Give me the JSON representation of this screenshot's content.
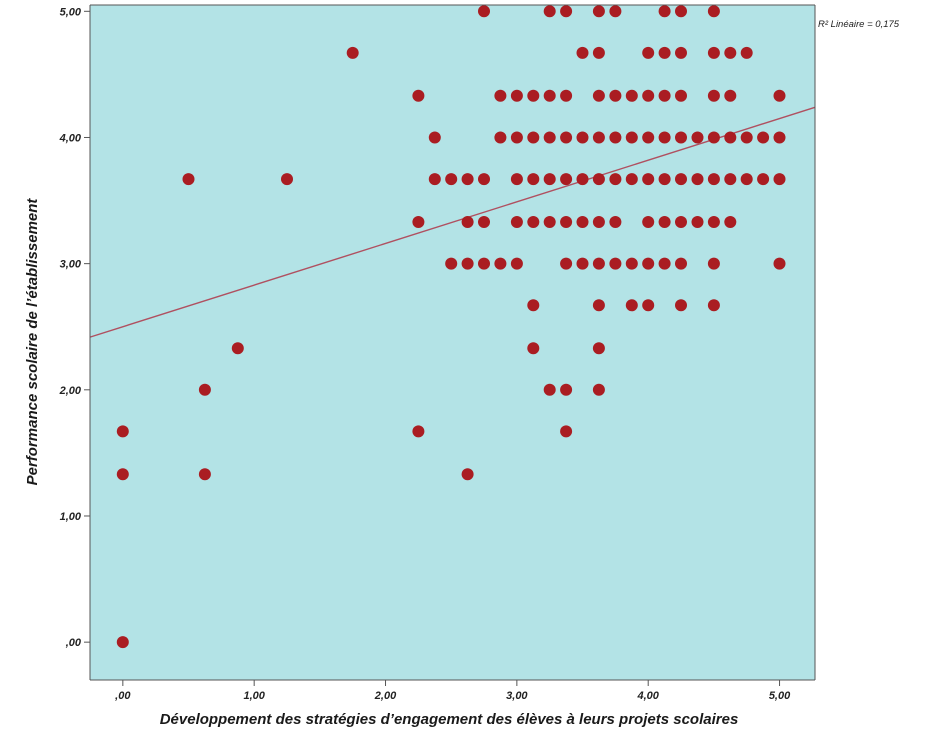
{
  "chart_data": {
    "type": "scatter",
    "xlabel": "Développement des stratégies d’engagement des élèves à leurs projets scolaires",
    "ylabel": "Performance scolaire de l’établissement",
    "xlim": [
      -0.25,
      5.27
    ],
    "ylim": [
      -0.3,
      5.05
    ],
    "x_ticks": [
      {
        "value": 0,
        "label": ",00"
      },
      {
        "value": 1,
        "label": "1,00"
      },
      {
        "value": 2,
        "label": "2,00"
      },
      {
        "value": 3,
        "label": "3,00"
      },
      {
        "value": 4,
        "label": "4,00"
      },
      {
        "value": 5,
        "label": "5,00"
      }
    ],
    "y_ticks": [
      {
        "value": 0,
        "label": ",00"
      },
      {
        "value": 1,
        "label": "1,00"
      },
      {
        "value": 2,
        "label": "2,00"
      },
      {
        "value": 3,
        "label": "3,00"
      },
      {
        "value": 4,
        "label": "4,00"
      },
      {
        "value": 5,
        "label": "5,00"
      }
    ],
    "fit_line": {
      "label": "R² Linéaire = 0,175",
      "intercept": 2.5,
      "slope": 0.33,
      "color": "#b05060"
    },
    "grid": false,
    "colors": {
      "background": "#b3e3e6",
      "point": "#aa1d22",
      "axis": "#555555"
    },
    "points": [
      [
        0,
        0
      ],
      [
        0,
        1.33
      ],
      [
        0,
        1.67
      ],
      [
        0.5,
        3.67
      ],
      [
        0.625,
        1.33
      ],
      [
        0.625,
        2
      ],
      [
        0.875,
        2.33
      ],
      [
        1.25,
        3.67
      ],
      [
        1.75,
        4.67
      ],
      [
        2.25,
        1.67
      ],
      [
        2.25,
        3.33
      ],
      [
        2.25,
        4.33
      ],
      [
        2.375,
        4
      ],
      [
        2.375,
        3.67
      ],
      [
        2.5,
        3.67
      ],
      [
        2.5,
        3
      ],
      [
        2.625,
        1.33
      ],
      [
        2.625,
        3.67
      ],
      [
        2.625,
        3.33
      ],
      [
        2.625,
        3
      ],
      [
        2.75,
        5
      ],
      [
        2.75,
        3.67
      ],
      [
        2.75,
        3.33
      ],
      [
        2.75,
        3
      ],
      [
        2.875,
        4.33
      ],
      [
        2.875,
        4
      ],
      [
        2.875,
        3
      ],
      [
        3,
        4.33
      ],
      [
        3,
        4
      ],
      [
        3,
        3.67
      ],
      [
        3,
        3.33
      ],
      [
        3,
        3
      ],
      [
        3.125,
        4.33
      ],
      [
        3.125,
        4
      ],
      [
        3.125,
        3.67
      ],
      [
        3.125,
        3.33
      ],
      [
        3.125,
        2.67
      ],
      [
        3.125,
        2.33
      ],
      [
        3.25,
        5
      ],
      [
        3.25,
        4.33
      ],
      [
        3.25,
        4
      ],
      [
        3.25,
        3.67
      ],
      [
        3.25,
        3.33
      ],
      [
        3.25,
        2
      ],
      [
        3.375,
        5
      ],
      [
        3.375,
        4.33
      ],
      [
        3.375,
        4
      ],
      [
        3.375,
        3.67
      ],
      [
        3.375,
        3.33
      ],
      [
        3.375,
        3
      ],
      [
        3.375,
        2
      ],
      [
        3.375,
        1.67
      ],
      [
        3.5,
        4.67
      ],
      [
        3.5,
        4
      ],
      [
        3.5,
        3.67
      ],
      [
        3.5,
        3.33
      ],
      [
        3.5,
        3
      ],
      [
        3.625,
        5
      ],
      [
        3.625,
        4.67
      ],
      [
        3.625,
        4.33
      ],
      [
        3.625,
        4
      ],
      [
        3.625,
        3.67
      ],
      [
        3.625,
        3.33
      ],
      [
        3.625,
        3
      ],
      [
        3.625,
        2.67
      ],
      [
        3.625,
        2.33
      ],
      [
        3.625,
        2
      ],
      [
        3.75,
        5
      ],
      [
        3.75,
        4.33
      ],
      [
        3.75,
        4
      ],
      [
        3.75,
        3.67
      ],
      [
        3.75,
        3.33
      ],
      [
        3.75,
        3
      ],
      [
        3.875,
        4.33
      ],
      [
        3.875,
        4
      ],
      [
        3.875,
        3.67
      ],
      [
        3.875,
        3
      ],
      [
        3.875,
        2.67
      ],
      [
        4,
        4.67
      ],
      [
        4,
        4.33
      ],
      [
        4,
        4
      ],
      [
        4,
        3.67
      ],
      [
        4,
        3.33
      ],
      [
        4,
        3
      ],
      [
        4,
        2.67
      ],
      [
        4.125,
        5
      ],
      [
        4.125,
        4.67
      ],
      [
        4.125,
        4.33
      ],
      [
        4.125,
        4
      ],
      [
        4.125,
        3.67
      ],
      [
        4.125,
        3.33
      ],
      [
        4.125,
        3
      ],
      [
        4.25,
        5
      ],
      [
        4.25,
        4.67
      ],
      [
        4.25,
        4.33
      ],
      [
        4.25,
        4
      ],
      [
        4.25,
        3.67
      ],
      [
        4.25,
        3.33
      ],
      [
        4.25,
        3
      ],
      [
        4.25,
        2.67
      ],
      [
        4.375,
        4
      ],
      [
        4.375,
        3.67
      ],
      [
        4.375,
        3.33
      ],
      [
        4.5,
        5
      ],
      [
        4.5,
        4.67
      ],
      [
        4.5,
        4.33
      ],
      [
        4.5,
        4
      ],
      [
        4.5,
        3.67
      ],
      [
        4.5,
        3.33
      ],
      [
        4.5,
        3
      ],
      [
        4.5,
        2.67
      ],
      [
        4.625,
        4.67
      ],
      [
        4.625,
        4.33
      ],
      [
        4.625,
        4
      ],
      [
        4.625,
        3.67
      ],
      [
        4.625,
        3.33
      ],
      [
        4.75,
        4.67
      ],
      [
        4.75,
        4
      ],
      [
        4.75,
        3.67
      ],
      [
        4.875,
        4
      ],
      [
        4.875,
        3.67
      ],
      [
        5,
        4.33
      ],
      [
        5,
        4
      ],
      [
        5,
        3.67
      ],
      [
        5,
        3
      ]
    ]
  }
}
